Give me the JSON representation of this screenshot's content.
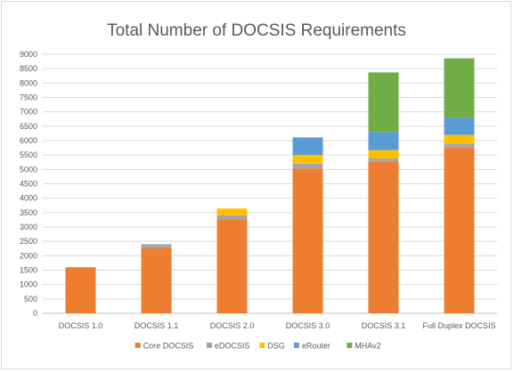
{
  "chart_data": {
    "type": "bar",
    "stacked": true,
    "title": "Total Number of DOCSIS Requirements",
    "xlabel": "",
    "ylabel": "",
    "ylim": [
      0,
      9000
    ],
    "ytick_step": 500,
    "grid": true,
    "legend_position": "bottom",
    "categories": [
      "DOCSIS 1.0",
      "DOCSIS 1.1",
      "DOCSIS 2.0",
      "DOCSIS 3.0",
      "DOCSIS 3.1",
      "Full Duplex DOCSIS"
    ],
    "series": [
      {
        "name": "Core DOCSIS",
        "color": "#ed7d31",
        "values": [
          1600,
          2270,
          3260,
          5030,
          5260,
          5750
        ]
      },
      {
        "name": "eDOCSIS",
        "color": "#a5a5a5",
        "values": [
          0,
          130,
          150,
          170,
          120,
          150
        ]
      },
      {
        "name": "DSG",
        "color": "#ffc000",
        "values": [
          0,
          0,
          230,
          300,
          290,
          300
        ]
      },
      {
        "name": "eRouter",
        "color": "#5b9bd5",
        "values": [
          0,
          0,
          0,
          610,
          630,
          600
        ]
      },
      {
        "name": "MHAv2",
        "color": "#70ad47",
        "values": [
          0,
          0,
          0,
          0,
          2070,
          2060
        ]
      }
    ]
  }
}
